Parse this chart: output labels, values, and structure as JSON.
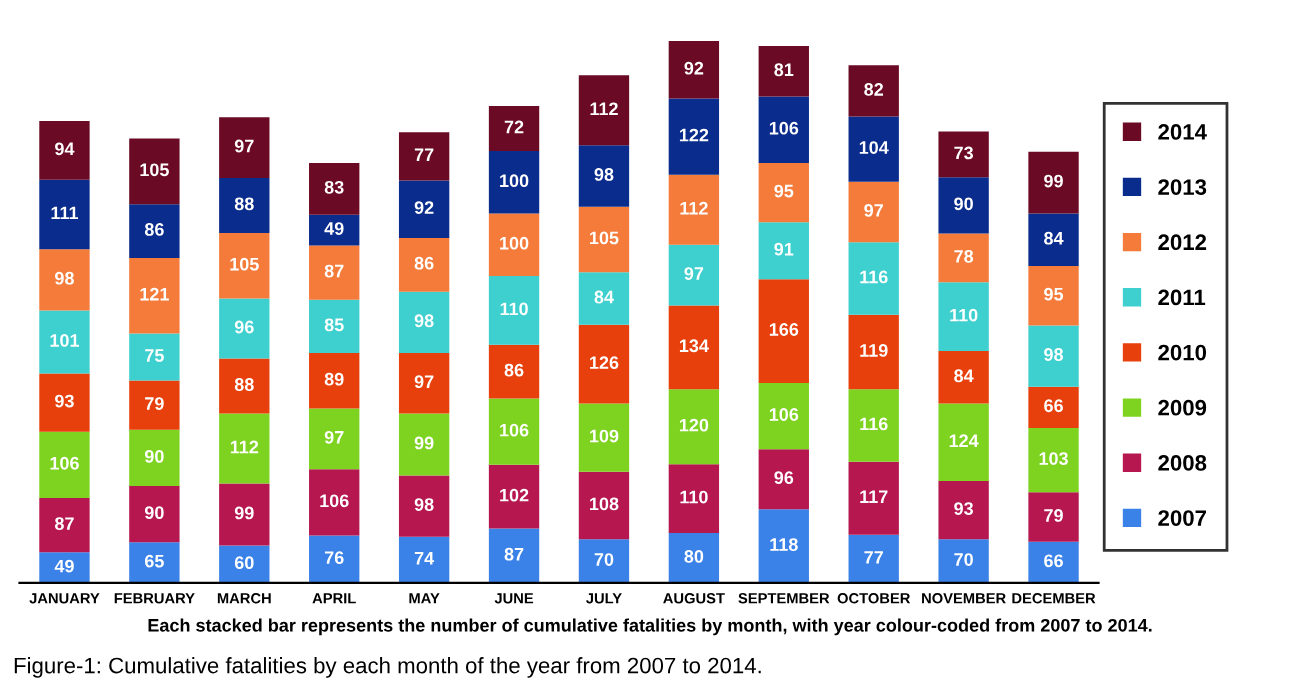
{
  "chart_data": {
    "type": "bar",
    "stacked": true,
    "data_labels": true,
    "legend": "right",
    "grid": false,
    "tick_labels": "x",
    "categories": [
      "JANUARY",
      "FEBRUARY",
      "MARCH",
      "APRIL",
      "MAY",
      "JUNE",
      "JULY",
      "AUGUST",
      "SEPTEMBER",
      "OCTOBER",
      "NOVEMBER",
      "DECEMBER"
    ],
    "series": [
      {
        "name": "2007",
        "color": "#3b82e8",
        "values": [
          49,
          65,
          60,
          76,
          74,
          87,
          70,
          80,
          118,
          77,
          70,
          66
        ]
      },
      {
        "name": "2008",
        "color": "#b5174e",
        "values": [
          87,
          90,
          99,
          106,
          98,
          102,
          108,
          110,
          96,
          117,
          93,
          79
        ]
      },
      {
        "name": "2009",
        "color": "#7ed321",
        "values": [
          106,
          90,
          112,
          97,
          99,
          106,
          109,
          120,
          106,
          116,
          124,
          103
        ]
      },
      {
        "name": "2010",
        "color": "#e8400c",
        "values": [
          93,
          79,
          88,
          89,
          97,
          86,
          126,
          134,
          166,
          119,
          84,
          66
        ]
      },
      {
        "name": "2011",
        "color": "#3ecfcf",
        "values": [
          101,
          75,
          96,
          85,
          98,
          110,
          84,
          97,
          91,
          116,
          110,
          98
        ]
      },
      {
        "name": "2012",
        "color": "#f47b3a",
        "values": [
          98,
          121,
          105,
          87,
          86,
          100,
          105,
          112,
          95,
          97,
          78,
          95
        ]
      },
      {
        "name": "2013",
        "color": "#0a2c8c",
        "values": [
          111,
          86,
          88,
          49,
          92,
          100,
          98,
          122,
          106,
          104,
          90,
          84
        ]
      },
      {
        "name": "2014",
        "color": "#6b0a24",
        "values": [
          94,
          105,
          97,
          83,
          77,
          72,
          112,
          92,
          81,
          82,
          73,
          99
        ]
      }
    ],
    "annotations": [
      "Each stacked bar represents the number of cumulative fatalities by month, with year colour-coded from 2007 to 2014.",
      "Figure-1: Cumulative fatalities by each month of the year from 2007 to 2014."
    ]
  }
}
